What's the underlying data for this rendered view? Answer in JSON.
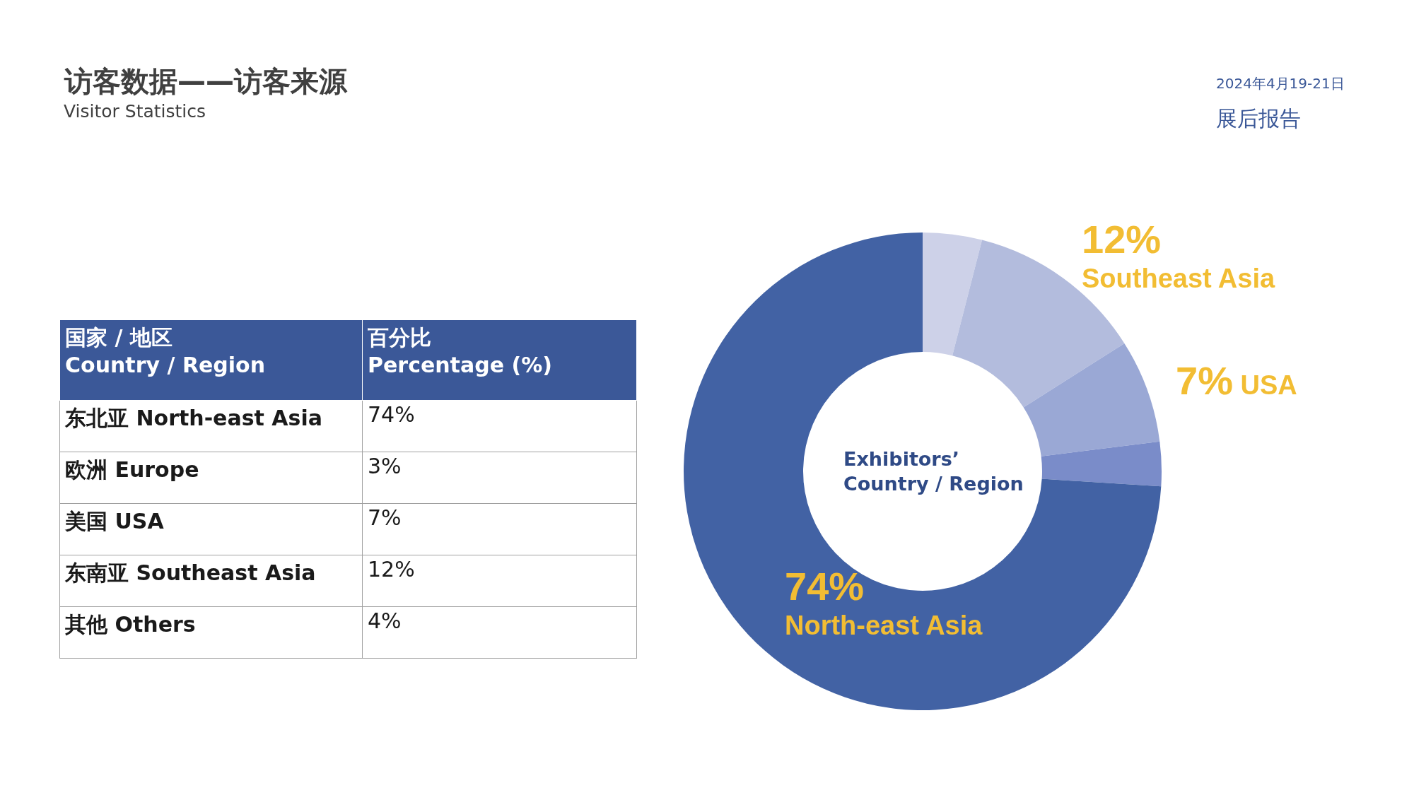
{
  "chart_data": [
    {
      "type": "other",
      "title": "访客数据——访客来源",
      "subtitle": "Visitor Statistics",
      "annotations": [
        "2024年4月19-21日",
        "展后报告",
        "国家 / 地区\nCountry / Region",
        "百分比\nPercentage (%)"
      ],
      "categories": [
        "东北亚 North-east Asia",
        "欧洲 Europe",
        "美国 USA",
        "东南亚 Southeast Asia",
        "其他 Others"
      ],
      "value_labels": [
        "74%",
        "3%",
        "7%",
        "12%",
        "4%"
      ]
    },
    {
      "type": "donut",
      "annotations": [
        "Exhibitors’\nCountry / Region"
      ],
      "categories": [
        null,
        "Southeast Asia",
        "USA",
        null,
        "North-east Asia"
      ],
      "values": [
        4,
        12,
        7,
        3,
        74
      ],
      "value_labels": [
        null,
        "12%",
        "7%",
        null,
        "74%"
      ],
      "colors": [
        "#cdd1e8",
        "#b3bcdd",
        "#9aa8d5",
        "#7a8cc9",
        "#4262a4"
      ]
    }
  ]
}
